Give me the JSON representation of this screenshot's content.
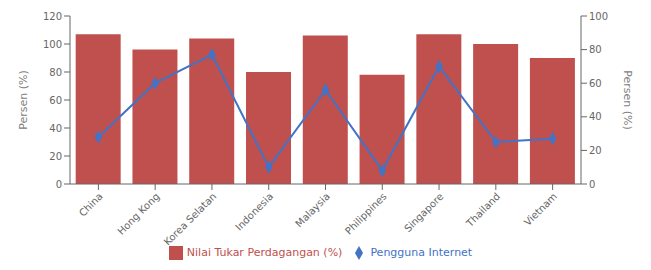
{
  "chart_data": {
    "type": "bar",
    "categories": [
      "China",
      "Hong Kong",
      "Korea Selatan",
      "Indonesia",
      "Malaysia",
      "Philippines",
      "Singapore",
      "Thailand",
      "Vietnam"
    ],
    "series": [
      {
        "name": "Nilai Tukar Perdagangan (%)",
        "type": "bar",
        "color": "#C0504D",
        "values": [
          107,
          96,
          104,
          80,
          106,
          78,
          107,
          100,
          90
        ]
      },
      {
        "name": "Pengguna Internet",
        "type": "line",
        "color": "#4472C4",
        "marker": "diamond",
        "axis": "y2",
        "values": [
          28,
          60,
          77,
          10,
          56,
          8,
          70,
          25,
          27
        ]
      }
    ],
    "ylabel": "Persen (%)",
    "y2label": "Persen (%)",
    "ylim": [
      0,
      120
    ],
    "yticks": [
      0,
      20,
      40,
      60,
      80,
      100,
      120
    ],
    "y2lim": [
      0,
      100
    ],
    "y2ticks": [
      0,
      20,
      40,
      60,
      80,
      100
    ],
    "legend": "bottom"
  }
}
